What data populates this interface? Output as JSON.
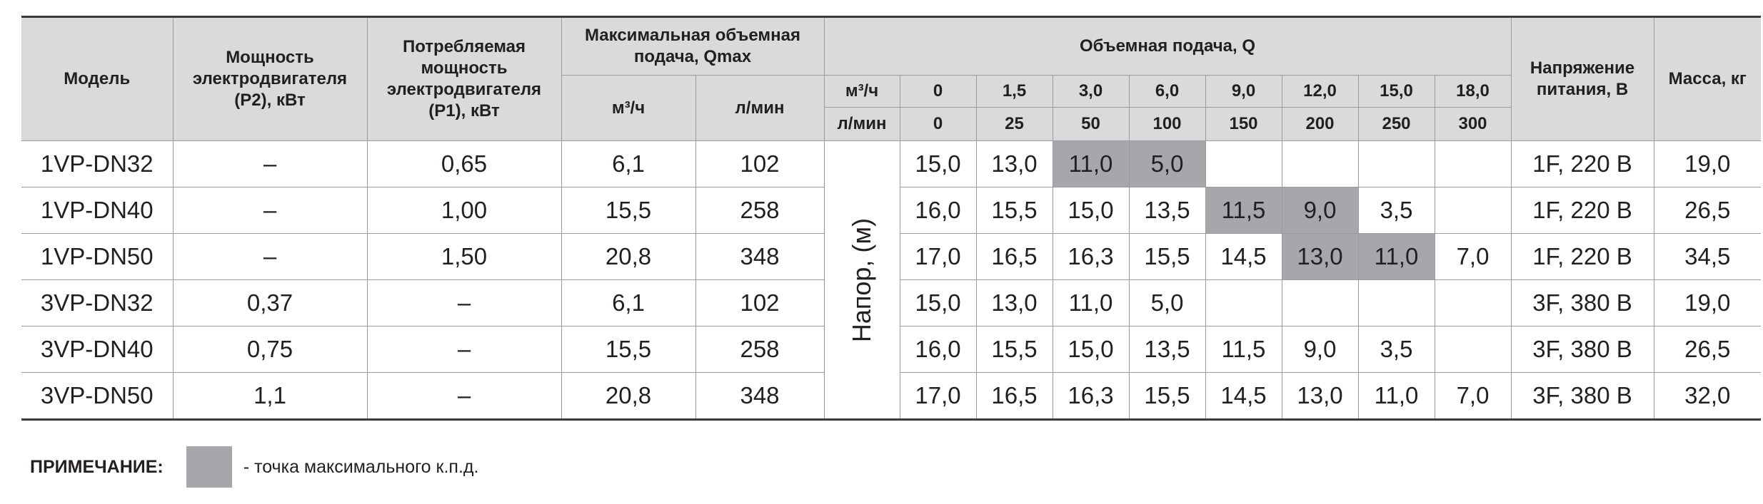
{
  "header": {
    "model": "Модель",
    "p2": "Мощность электродвигателя (P2), кВт",
    "p1": "Потребляемая мощность электродвигателя (P1), кВт",
    "qmax": "Максимальная объемная подача, Qmax",
    "qmax_m3h": "м³/ч",
    "qmax_lmin": "л/мин",
    "flow_group": "Объемная подача, Q",
    "flow_unit_m3h": "м³/ч",
    "flow_unit_lmin": "л/мин",
    "flow_m3h": [
      "0",
      "1,5",
      "3,0",
      "6,0",
      "9,0",
      "12,0",
      "15,0",
      "18,0"
    ],
    "flow_lmin": [
      "0",
      "25",
      "50",
      "100",
      "150",
      "200",
      "250",
      "300"
    ],
    "voltage": "Напряжение питания, В",
    "mass": "Масса, кг"
  },
  "head_label": "Напор, (м)",
  "rows": [
    {
      "model": "1VP-DN32",
      "p2": "–",
      "p1": "0,65",
      "qmax_m3h": "6,1",
      "qmax_lmin": "102",
      "heads": [
        "15,0",
        "13,0",
        "11,0",
        "5,0",
        "",
        "",
        "",
        ""
      ],
      "highlight": [
        false,
        false,
        true,
        true,
        false,
        false,
        false,
        false
      ],
      "voltage": "1F, 220 В",
      "mass": "19,0"
    },
    {
      "model": "1VP-DN40",
      "p2": "–",
      "p1": "1,00",
      "qmax_m3h": "15,5",
      "qmax_lmin": "258",
      "heads": [
        "16,0",
        "15,5",
        "15,0",
        "13,5",
        "11,5",
        "9,0",
        "3,5",
        ""
      ],
      "highlight": [
        false,
        false,
        false,
        false,
        true,
        true,
        false,
        false
      ],
      "voltage": "1F, 220 В",
      "mass": "26,5"
    },
    {
      "model": "1VP-DN50",
      "p2": "–",
      "p1": "1,50",
      "qmax_m3h": "20,8",
      "qmax_lmin": "348",
      "heads": [
        "17,0",
        "16,5",
        "16,3",
        "15,5",
        "14,5",
        "13,0",
        "11,0",
        "7,0"
      ],
      "highlight": [
        false,
        false,
        false,
        false,
        false,
        true,
        true,
        false
      ],
      "voltage": "1F, 220 В",
      "mass": "34,5"
    },
    {
      "model": "3VP-DN32",
      "p2": "0,37",
      "p1": "–",
      "qmax_m3h": "6,1",
      "qmax_lmin": "102",
      "heads": [
        "15,0",
        "13,0",
        "11,0",
        "5,0",
        "",
        "",
        "",
        ""
      ],
      "highlight": [
        false,
        false,
        false,
        false,
        false,
        false,
        false,
        false
      ],
      "voltage": "3F, 380 В",
      "mass": "19,0"
    },
    {
      "model": "3VP-DN40",
      "p2": "0,75",
      "p1": "–",
      "qmax_m3h": "15,5",
      "qmax_lmin": "258",
      "heads": [
        "16,0",
        "15,5",
        "15,0",
        "13,5",
        "11,5",
        "9,0",
        "3,5",
        ""
      ],
      "highlight": [
        false,
        false,
        false,
        false,
        false,
        false,
        false,
        false
      ],
      "voltage": "3F, 380 В",
      "mass": "26,5"
    },
    {
      "model": "3VP-DN50",
      "p2": "1,1",
      "p1": "–",
      "qmax_m3h": "20,8",
      "qmax_lmin": "348",
      "heads": [
        "17,0",
        "16,5",
        "16,3",
        "15,5",
        "14,5",
        "13,0",
        "11,0",
        "7,0"
      ],
      "highlight": [
        false,
        false,
        false,
        false,
        false,
        false,
        false,
        false
      ],
      "voltage": "3F, 380 В",
      "mass": "32,0"
    }
  ],
  "note": {
    "label": "ПРИМЕЧАНИЕ:",
    "text": "- точка максимального к.п.д."
  },
  "colors": {
    "highlight": "#a5a7aa",
    "header_bg": "#d9dadb",
    "rule": "#3a3a3c"
  }
}
